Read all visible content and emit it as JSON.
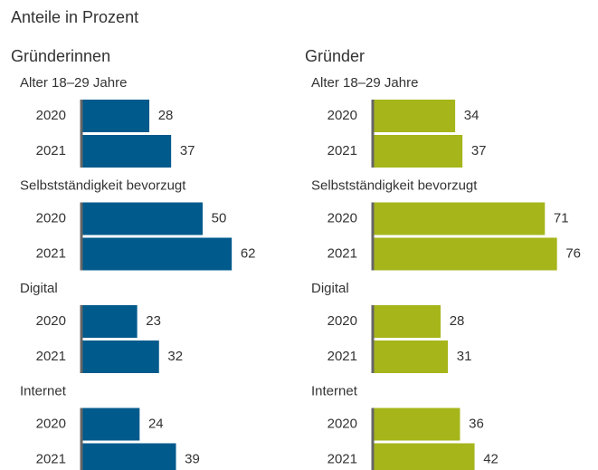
{
  "title": "Anteile in Prozent",
  "chart_data": [
    {
      "type": "bar",
      "orientation": "horizontal",
      "title": "Gründerinnen",
      "color": "#005a8c",
      "groups": [
        {
          "name": "Alter 18–29 Jahre",
          "categories": [
            "2020",
            "2021"
          ],
          "values": [
            28,
            37
          ]
        },
        {
          "name": "Selbstständigkeit bevorzugt",
          "categories": [
            "2020",
            "2021"
          ],
          "values": [
            50,
            62
          ]
        },
        {
          "name": "Digital",
          "categories": [
            "2020",
            "2021"
          ],
          "values": [
            23,
            32
          ]
        },
        {
          "name": "Internet",
          "categories": [
            "2020",
            "2021"
          ],
          "values": [
            24,
            39
          ]
        }
      ]
    },
    {
      "type": "bar",
      "orientation": "horizontal",
      "title": "Gründer",
      "color": "#a5b51a",
      "groups": [
        {
          "name": "Alter 18–29 Jahre",
          "categories": [
            "2020",
            "2021"
          ],
          "values": [
            34,
            37
          ]
        },
        {
          "name": "Selbstständigkeit bevorzugt",
          "categories": [
            "2020",
            "2021"
          ],
          "values": [
            71,
            76
          ]
        },
        {
          "name": "Digital",
          "categories": [
            "2020",
            "2021"
          ],
          "values": [
            28,
            31
          ]
        },
        {
          "name": "Internet",
          "categories": [
            "2020",
            "2021"
          ],
          "values": [
            36,
            42
          ]
        }
      ]
    }
  ]
}
